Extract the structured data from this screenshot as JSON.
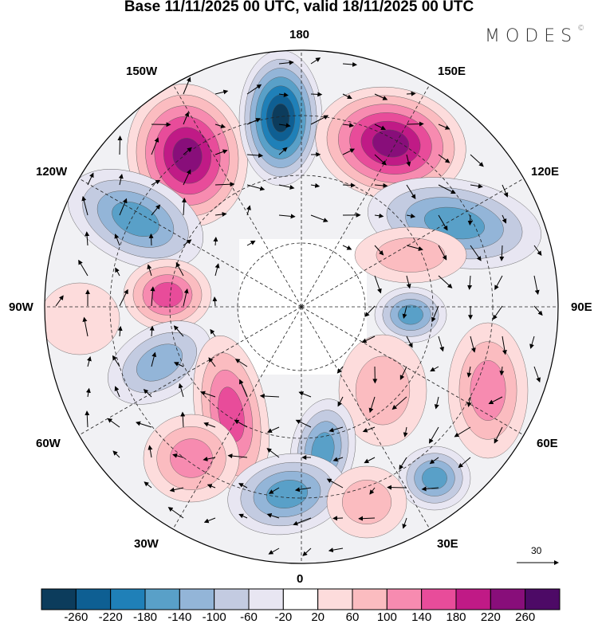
{
  "title": "Base 11/11/2025 00 UTC, valid 18/11/2025 00 UTC",
  "logo": {
    "text": "MODES",
    "mark": "©"
  },
  "longitude_labels": {
    "top": "180",
    "bottom": "0",
    "left": "90W",
    "right": "90E",
    "nw1": "150W",
    "nw2": "120W",
    "ne1": "150E",
    "ne2": "120E",
    "sw1": "60W",
    "sw2": "30W",
    "se1": "60E",
    "se2": "30E"
  },
  "reference_vector": {
    "label": "30"
  },
  "colorbar": {
    "colors": [
      "#0c3c5c",
      "#0e5f93",
      "#1f80b8",
      "#59a0c8",
      "#93b5d8",
      "#c3cbe1",
      "#e8e6f2",
      "#ffffff",
      "#fddcdc",
      "#fbbcc0",
      "#f78bb0",
      "#e84c9a",
      "#c01a86",
      "#880e7a",
      "#4d0a66"
    ],
    "labels": [
      "-260",
      "-220",
      "-180",
      "-140",
      "-100",
      "-60",
      "-20",
      "20",
      "60",
      "100",
      "140",
      "180",
      "220",
      "260"
    ]
  }
}
